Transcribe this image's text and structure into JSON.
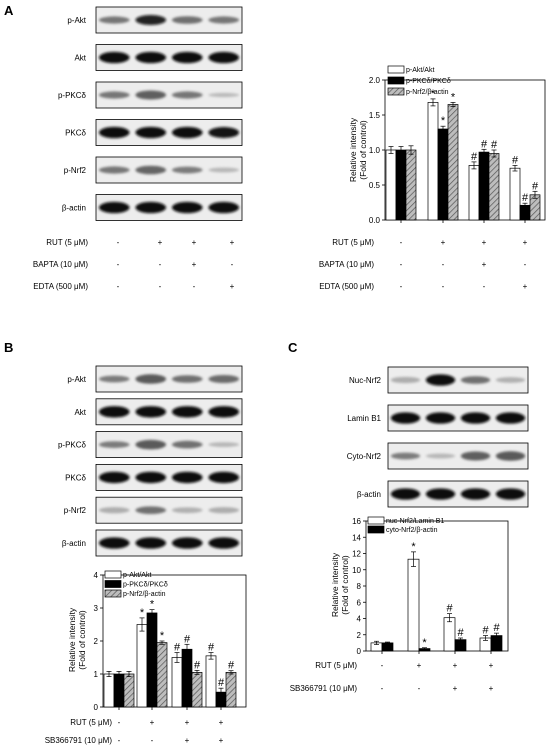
{
  "panels": {
    "A": {
      "letter": "A",
      "blot_labels": [
        "p-Akt",
        "Akt",
        "p-PKCδ",
        "PKCδ",
        "p-Nrf2",
        "β-actin"
      ],
      "treatments": [
        {
          "label": "RUT  (5 μM)",
          "signs": [
            "-",
            "+",
            "+",
            "+"
          ]
        },
        {
          "label": "BAPTA  (10 μM)",
          "signs": [
            "-",
            "-",
            "+",
            "-"
          ]
        },
        {
          "label": "EDTA  (500 μM)",
          "signs": [
            "-",
            "-",
            "-",
            "+"
          ]
        }
      ],
      "chart_treatments": [
        {
          "label": "RUT  (5 μM)",
          "signs": [
            "-",
            "+",
            "+",
            "+"
          ]
        },
        {
          "label": "BAPTA  (10 μM)",
          "signs": [
            "-",
            "-",
            "+",
            "-"
          ]
        },
        {
          "label": "EDTA  (500 μM)",
          "signs": [
            "-",
            "-",
            "-",
            "+"
          ]
        }
      ]
    },
    "B": {
      "letter": "B",
      "blot_labels": [
        "p-Akt",
        "Akt",
        "p-PKCδ",
        "PKCδ",
        "p-Nrf2",
        "β-actin"
      ],
      "treatments": [
        {
          "label": "RUT  (5 μM)",
          "signs": [
            "-",
            "+",
            "+",
            "+"
          ]
        },
        {
          "label": "SB366791 (10 μM)",
          "signs": [
            "-",
            "-",
            "+",
            "+"
          ]
        }
      ]
    },
    "C": {
      "letter": "C",
      "blot_labels": [
        "Nuc-Nrf2",
        "Lamin B1",
        "Cyto-Nrf2",
        "β-actin"
      ],
      "treatments": [
        {
          "label": "RUT  (5 μM)",
          "signs": [
            "-",
            "+",
            "+",
            "+"
          ]
        },
        {
          "label": "SB366791 (10 μM)",
          "signs": [
            "-",
            "-",
            "+",
            "+"
          ]
        }
      ]
    }
  },
  "chart_data": [
    {
      "type": "bar",
      "ylabel": "Relative intensity\n(Fold of control)",
      "ylim": [
        0,
        2.0
      ],
      "yticks": [
        "0.0",
        "0.5",
        "1.0",
        "1.5",
        "2.0"
      ],
      "series": [
        {
          "name": "p-Akt/Akt",
          "values": [
            1.0,
            1.68,
            0.78,
            0.74
          ],
          "errors": [
            0.05,
            0.05,
            0.05,
            0.04
          ],
          "marks": [
            "",
            "*",
            "#",
            "#"
          ]
        },
        {
          "name": "p-PKCδ/PKCδ",
          "values": [
            1.0,
            1.3,
            0.97,
            0.21
          ],
          "errors": [
            0.05,
            0.04,
            0.04,
            0.03
          ],
          "marks": [
            "",
            "*",
            "#",
            "#"
          ]
        },
        {
          "name": "p-Nrf2/β-actin",
          "values": [
            1.0,
            1.65,
            0.95,
            0.36
          ],
          "errors": [
            0.06,
            0.03,
            0.05,
            0.05
          ],
          "marks": [
            "",
            "*",
            "#",
            "#"
          ]
        }
      ]
    },
    {
      "type": "bar",
      "ylabel": "Relative intensity\n(Fold of control)",
      "ylim": [
        0,
        4
      ],
      "yticks": [
        "0",
        "1",
        "2",
        "3",
        "4"
      ],
      "series": [
        {
          "name": "p-Akt/Akt",
          "values": [
            1.0,
            2.5,
            1.5,
            1.55
          ],
          "errors": [
            0.08,
            0.2,
            0.15,
            0.1
          ],
          "marks": [
            "",
            "*",
            "#",
            "#"
          ]
        },
        {
          "name": "p-PKCδ/PKCδ",
          "values": [
            1.0,
            2.85,
            1.75,
            0.45
          ],
          "errors": [
            0.08,
            0.1,
            0.15,
            0.12
          ],
          "marks": [
            "",
            "*",
            "#",
            "#"
          ]
        },
        {
          "name": "p-Nrf2/β-actin",
          "values": [
            1.0,
            1.95,
            1.05,
            1.05
          ],
          "errors": [
            0.08,
            0.05,
            0.06,
            0.05
          ],
          "marks": [
            "",
            "*",
            "#",
            "#"
          ]
        }
      ]
    },
    {
      "type": "bar",
      "ylabel": "Relative intensity\n(Fold of control)",
      "ylim": [
        0,
        16
      ],
      "yticks": [
        "0",
        "2",
        "4",
        "6",
        "8",
        "10",
        "12",
        "14",
        "16"
      ],
      "series": [
        {
          "name": "nuc-Nrf2/Lamin B1",
          "values": [
            1.0,
            11.3,
            4.1,
            1.6
          ],
          "errors": [
            0.2,
            0.9,
            0.5,
            0.3
          ],
          "marks": [
            "",
            "*",
            "#",
            "#"
          ]
        },
        {
          "name": "cyto-Nrf2/β-actin",
          "values": [
            1.0,
            0.3,
            1.4,
            1.9
          ],
          "errors": [
            0.1,
            0.1,
            0.2,
            0.3
          ],
          "marks": [
            "",
            "*",
            "#",
            "#"
          ]
        }
      ]
    }
  ]
}
